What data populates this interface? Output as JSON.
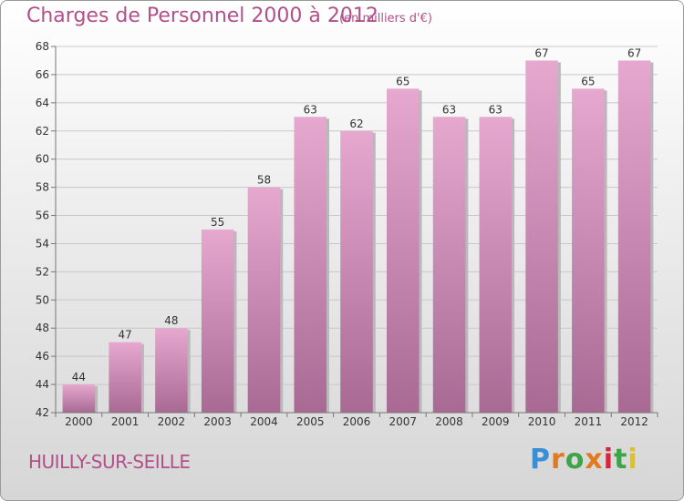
{
  "header": {
    "title": "Charges de Personnel 2000 à 2012",
    "unit": "(en milliers d'€)"
  },
  "footer": {
    "commune": "HUILLY-SUR-SEILLE",
    "logo": [
      "P",
      "r",
      "o",
      "x",
      "i",
      "t",
      "i"
    ]
  },
  "colors": {
    "accent": "#b25189",
    "bar_top": "#e6a8cf",
    "bar_bottom": "#a86a93"
  },
  "chart_data": {
    "type": "bar",
    "title": "Charges de Personnel 2000 à 2012",
    "subtitle": "(en milliers d'€)",
    "categories": [
      "2000",
      "2001",
      "2002",
      "2003",
      "2004",
      "2005",
      "2006",
      "2007",
      "2008",
      "2009",
      "2010",
      "2011",
      "2012"
    ],
    "values": [
      44,
      47,
      48,
      55,
      58,
      63,
      62,
      65,
      63,
      63,
      67,
      65,
      67
    ],
    "ylim": [
      42,
      68
    ],
    "yticks": [
      42,
      44,
      46,
      48,
      50,
      52,
      54,
      56,
      58,
      60,
      62,
      64,
      66,
      68
    ],
    "grid": true,
    "data_labels": true
  }
}
